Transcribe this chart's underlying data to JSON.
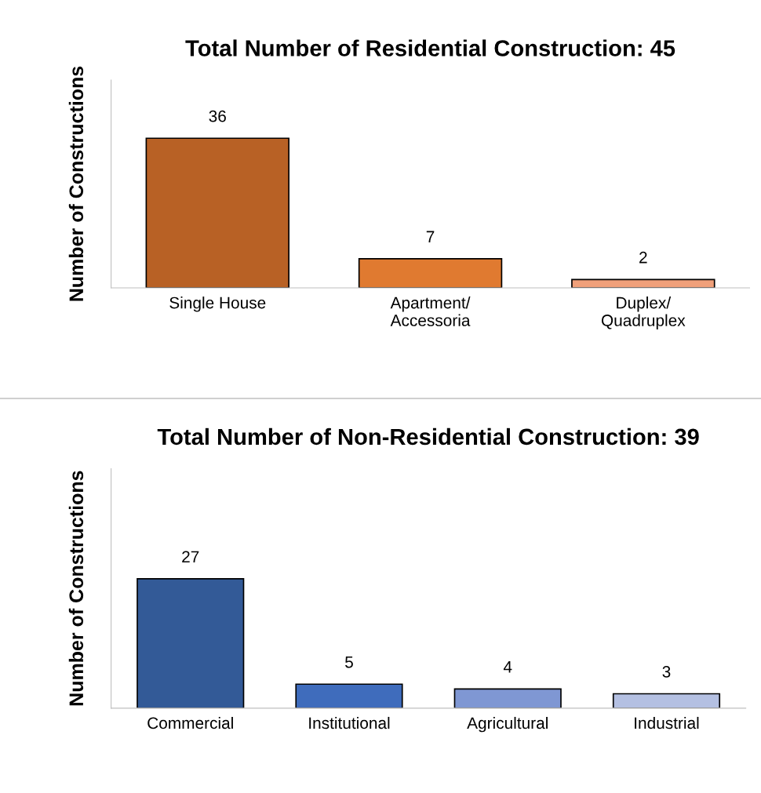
{
  "chart_data": [
    {
      "type": "bar",
      "title": "Total Number of Residential Construction: 45",
      "ylabel": "Number of Constructions",
      "categories": [
        "Single House",
        "Apartment/\nAccessoria",
        "Duplex/\nQuadruplex"
      ],
      "values": [
        36,
        7,
        2
      ],
      "colors": [
        "#b86125",
        "#e07a30",
        "#f0a07a"
      ],
      "ylim": [
        0,
        50
      ],
      "data_labels": true,
      "tick_labels": "x"
    },
    {
      "type": "bar",
      "title": "Total Number of Non-Residential Construction: 39",
      "ylabel": "Number of Constructions",
      "categories": [
        "Commercial",
        "Institutional",
        "Agricultural",
        "Industrial"
      ],
      "values": [
        27,
        5,
        4,
        3
      ],
      "colors": [
        "#335a97",
        "#3f6cbc",
        "#7f97d3",
        "#b4c0e2"
      ],
      "ylim": [
        0,
        50
      ],
      "data_labels": true,
      "tick_labels": "x"
    }
  ]
}
